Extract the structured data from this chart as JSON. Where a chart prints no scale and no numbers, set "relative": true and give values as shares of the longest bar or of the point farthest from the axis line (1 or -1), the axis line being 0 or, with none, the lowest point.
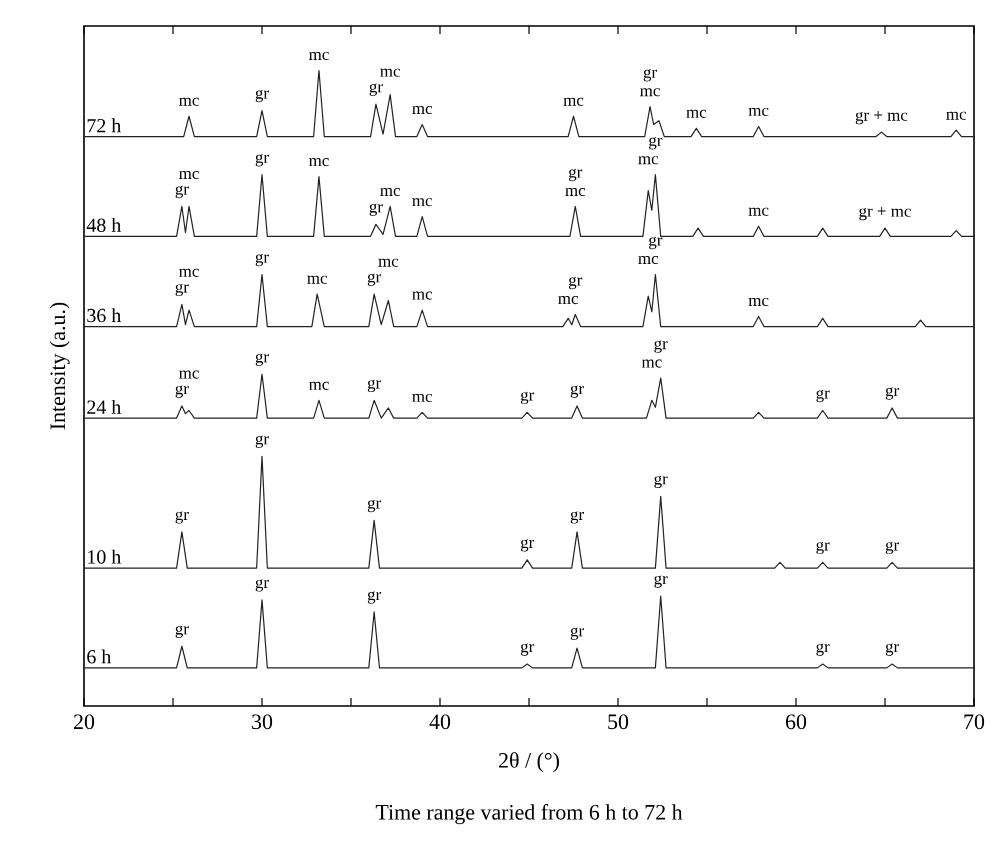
{
  "chart_data": {
    "type": "line",
    "relative": true,
    "xlabel": "2θ / (°)",
    "ylabel": "Intensity (a.u.)",
    "tick_labels": "x",
    "xlim": [
      20,
      70
    ],
    "xticks": [
      20,
      {
        "value": 25,
        "label": null
      },
      30,
      {
        "value": 35,
        "label": null
      },
      40,
      {
        "value": 45,
        "label": null
      },
      50,
      {
        "value": 55,
        "label": null
      },
      60,
      {
        "value": 65,
        "label": null
      },
      70
    ],
    "series": [
      {
        "name": "6 h",
        "color": "#222222",
        "x": [
          20,
          25.2,
          25.5,
          25.8,
          29.7,
          30.0,
          30.3,
          36.0,
          36.3,
          36.6,
          44.6,
          44.9,
          45.2,
          47.4,
          47.7,
          48.0,
          52.1,
          52.4,
          52.7,
          61.2,
          61.5,
          61.8,
          65.1,
          65.4,
          65.7,
          70
        ],
        "values": [
          0.06,
          0.06,
          0.094,
          0.06,
          0.06,
          0.167,
          0.06,
          0.06,
          0.148,
          0.06,
          0.06,
          0.066,
          0.06,
          0.06,
          0.091,
          0.06,
          0.06,
          0.173,
          0.06,
          0.06,
          0.066,
          0.06,
          0.06,
          0.066,
          0.06,
          0.06
        ]
      },
      {
        "name": "10 h",
        "color": "#222222",
        "x": [
          20,
          25.2,
          25.5,
          25.8,
          29.7,
          30.0,
          30.3,
          36.0,
          36.3,
          36.6,
          44.6,
          44.9,
          45.2,
          47.4,
          47.7,
          48.0,
          52.1,
          52.4,
          52.7,
          58.8,
          59.1,
          59.4,
          61.2,
          61.5,
          61.8,
          65.1,
          65.4,
          65.7,
          70
        ],
        "values": [
          0.217,
          0.217,
          0.274,
          0.217,
          0.217,
          0.393,
          0.217,
          0.217,
          0.292,
          0.217,
          0.217,
          0.23,
          0.217,
          0.217,
          0.274,
          0.217,
          0.217,
          0.33,
          0.217,
          0.217,
          0.226,
          0.217,
          0.217,
          0.226,
          0.217,
          0.217,
          0.226,
          0.217,
          0.217
        ]
      },
      {
        "name": "24 h",
        "color": "#222222",
        "x": [
          20,
          25.2,
          25.5,
          25.7,
          25.9,
          26.2,
          29.7,
          30.0,
          30.3,
          32.9,
          33.2,
          33.5,
          36.0,
          36.3,
          36.7,
          37.1,
          37.4,
          38.7,
          39.0,
          39.3,
          44.6,
          44.9,
          45.2,
          47.4,
          47.7,
          48.0,
          51.6,
          51.9,
          52.1,
          52.4,
          52.7,
          57.6,
          57.9,
          58.2,
          61.2,
          61.5,
          61.8,
          65.1,
          65.4,
          65.7,
          70
        ],
        "values": [
          0.453,
          0.453,
          0.472,
          0.46,
          0.465,
          0.453,
          0.453,
          0.522,
          0.453,
          0.453,
          0.481,
          0.453,
          0.453,
          0.481,
          0.453,
          0.469,
          0.453,
          0.453,
          0.462,
          0.453,
          0.453,
          0.462,
          0.453,
          0.453,
          0.472,
          0.453,
          0.453,
          0.481,
          0.47,
          0.516,
          0.453,
          0.453,
          0.462,
          0.453,
          0.453,
          0.465,
          0.453,
          0.453,
          0.469,
          0.453,
          0.453
        ]
      },
      {
        "name": "36 h",
        "color": "#222222",
        "x": [
          20,
          25.2,
          25.5,
          25.7,
          25.9,
          26.2,
          29.7,
          30.0,
          30.3,
          32.8,
          33.1,
          33.5,
          36.0,
          36.3,
          36.7,
          37.1,
          37.4,
          38.7,
          39.0,
          39.3,
          46.9,
          47.2,
          47.4,
          47.6,
          47.9,
          51.4,
          51.7,
          51.9,
          52.1,
          52.4,
          57.6,
          57.9,
          58.2,
          61.2,
          61.5,
          61.8,
          66.7,
          67.0,
          67.3,
          70
        ],
        "values": [
          0.597,
          0.597,
          0.632,
          0.6,
          0.623,
          0.597,
          0.597,
          0.679,
          0.597,
          0.597,
          0.648,
          0.597,
          0.597,
          0.648,
          0.6,
          0.638,
          0.597,
          0.597,
          0.623,
          0.597,
          0.597,
          0.61,
          0.6,
          0.616,
          0.597,
          0.597,
          0.645,
          0.62,
          0.679,
          0.597,
          0.597,
          0.613,
          0.597,
          0.597,
          0.61,
          0.597,
          0.597,
          0.607,
          0.597,
          0.597
        ]
      },
      {
        "name": "48 h",
        "color": "#222222",
        "x": [
          20,
          25.2,
          25.5,
          25.7,
          25.9,
          26.2,
          29.7,
          30.0,
          30.3,
          32.9,
          33.2,
          33.5,
          36.1,
          36.4,
          36.8,
          37.2,
          37.5,
          38.7,
          39.0,
          39.3,
          47.3,
          47.6,
          47.9,
          51.4,
          51.7,
          51.9,
          52.1,
          52.4,
          54.2,
          54.5,
          54.8,
          57.6,
          57.9,
          58.2,
          61.2,
          61.5,
          61.8,
          64.7,
          65.0,
          65.3,
          68.7,
          69.0,
          69.3,
          70
        ],
        "values": [
          0.739,
          0.739,
          0.786,
          0.745,
          0.786,
          0.739,
          0.739,
          0.836,
          0.739,
          0.739,
          0.833,
          0.739,
          0.739,
          0.758,
          0.742,
          0.786,
          0.739,
          0.739,
          0.77,
          0.739,
          0.739,
          0.786,
          0.739,
          0.739,
          0.811,
          0.78,
          0.836,
          0.739,
          0.739,
          0.752,
          0.739,
          0.739,
          0.755,
          0.739,
          0.739,
          0.752,
          0.739,
          0.739,
          0.752,
          0.739,
          0.739,
          0.748,
          0.739,
          0.739
        ]
      },
      {
        "name": "72 h",
        "color": "#222222",
        "x": [
          20,
          25.6,
          25.9,
          26.2,
          29.7,
          30.0,
          30.3,
          32.9,
          33.2,
          33.5,
          36.1,
          36.4,
          36.8,
          37.2,
          37.5,
          38.7,
          39.0,
          39.3,
          47.2,
          47.5,
          47.8,
          51.5,
          51.8,
          52.0,
          52.3,
          52.6,
          54.1,
          54.4,
          54.7,
          57.6,
          57.9,
          58.2,
          64.5,
          64.8,
          65.1,
          68.7,
          69.0,
          69.3,
          70
        ],
        "values": [
          0.896,
          0.896,
          0.928,
          0.896,
          0.896,
          0.937,
          0.896,
          0.896,
          1.0,
          0.896,
          0.896,
          0.947,
          0.9,
          0.962,
          0.896,
          0.896,
          0.915,
          0.896,
          0.896,
          0.928,
          0.896,
          0.896,
          0.943,
          0.915,
          0.921,
          0.896,
          0.896,
          0.909,
          0.896,
          0.896,
          0.912,
          0.896,
          0.896,
          0.903,
          0.896,
          0.896,
          0.906,
          0.896,
          0.896
        ]
      }
    ],
    "annotations": [
      {
        "text": "gr",
        "x": 25.5,
        "y": 0.094
      },
      {
        "text": "gr",
        "x": 30.0,
        "y": 0.167
      },
      {
        "text": "gr",
        "x": 36.3,
        "y": 0.148
      },
      {
        "text": "gr",
        "x": 44.9,
        "y": 0.066
      },
      {
        "text": "gr",
        "x": 47.7,
        "y": 0.091
      },
      {
        "text": "gr",
        "x": 52.4,
        "y": 0.173
      },
      {
        "text": "gr",
        "x": 61.5,
        "y": 0.066
      },
      {
        "text": "gr",
        "x": 65.4,
        "y": 0.066
      },
      {
        "text": "gr",
        "x": 25.5,
        "y": 0.274
      },
      {
        "text": "gr",
        "x": 30.0,
        "y": 0.393
      },
      {
        "text": "gr",
        "x": 36.3,
        "y": 0.292
      },
      {
        "text": "gr",
        "x": 44.9,
        "y": 0.23
      },
      {
        "text": "gr",
        "x": 47.7,
        "y": 0.274
      },
      {
        "text": "gr",
        "x": 52.4,
        "y": 0.33
      },
      {
        "text": "gr",
        "x": 61.5,
        "y": 0.226
      },
      {
        "text": "gr",
        "x": 65.4,
        "y": 0.226
      },
      {
        "text": "gr",
        "x": 25.5,
        "y": 0.472
      },
      {
        "text": "mc",
        "x": 25.9,
        "y": 0.465
      },
      {
        "text": "gr",
        "x": 30.0,
        "y": 0.522
      },
      {
        "text": "mc",
        "x": 33.2,
        "y": 0.481
      },
      {
        "text": "gr",
        "x": 36.3,
        "y": 0.481
      },
      {
        "text": "mc",
        "x": 39.0,
        "y": 0.462
      },
      {
        "text": "gr",
        "x": 44.9,
        "y": 0.462
      },
      {
        "text": "gr",
        "x": 47.7,
        "y": 0.472
      },
      {
        "text": "mc",
        "x": 51.9,
        "y": 0.481
      },
      {
        "text": "gr",
        "x": 52.4,
        "y": 0.516
      },
      {
        "text": "gr",
        "x": 61.5,
        "y": 0.465
      },
      {
        "text": "gr",
        "x": 65.4,
        "y": 0.469
      },
      {
        "text": "gr",
        "x": 25.5,
        "y": 0.632
      },
      {
        "text": "mc",
        "x": 25.9,
        "y": 0.623
      },
      {
        "text": "gr",
        "x": 30.0,
        "y": 0.679
      },
      {
        "text": "mc",
        "x": 33.1,
        "y": 0.648
      },
      {
        "text": "gr",
        "x": 36.3,
        "y": 0.648
      },
      {
        "text": "mc",
        "x": 37.1,
        "y": 0.638
      },
      {
        "text": "mc",
        "x": 39.0,
        "y": 0.623
      },
      {
        "text": "mc",
        "x": 47.2,
        "y": 0.61
      },
      {
        "text": "gr",
        "x": 47.6,
        "y": 0.616
      },
      {
        "text": "mc",
        "x": 51.7,
        "y": 0.645
      },
      {
        "text": "gr",
        "x": 52.1,
        "y": 0.679
      },
      {
        "text": "mc",
        "x": 57.9,
        "y": 0.613
      },
      {
        "text": "gr",
        "x": 25.5,
        "y": 0.786
      },
      {
        "text": "mc",
        "x": 25.9,
        "y": 0.786
      },
      {
        "text": "gr",
        "x": 30.0,
        "y": 0.836
      },
      {
        "text": "mc",
        "x": 33.2,
        "y": 0.833
      },
      {
        "text": "gr",
        "x": 36.4,
        "y": 0.758
      },
      {
        "text": "mc",
        "x": 37.2,
        "y": 0.786
      },
      {
        "text": "mc",
        "x": 39.0,
        "y": 0.77
      },
      {
        "text": "mc",
        "x": 47.6,
        "y": 0.786
      },
      {
        "text": "gr",
        "x": 47.6,
        "y": 0.786
      },
      {
        "text": "mc",
        "x": 51.7,
        "y": 0.811
      },
      {
        "text": "gr",
        "x": 52.1,
        "y": 0.836
      },
      {
        "text": "mc",
        "x": 57.9,
        "y": 0.755
      },
      {
        "text": "gr + mc",
        "x": 65.0,
        "y": 0.752
      },
      {
        "text": "mc",
        "x": 25.9,
        "y": 0.928
      },
      {
        "text": "gr",
        "x": 30.0,
        "y": 0.937
      },
      {
        "text": "mc",
        "x": 33.2,
        "y": 1.0
      },
      {
        "text": "gr",
        "x": 36.4,
        "y": 0.947
      },
      {
        "text": "mc",
        "x": 37.2,
        "y": 0.962
      },
      {
        "text": "mc",
        "x": 39.0,
        "y": 0.915
      },
      {
        "text": "mc",
        "x": 47.5,
        "y": 0.928
      },
      {
        "text": "mc",
        "x": 51.8,
        "y": 0.943
      },
      {
        "text": "gr",
        "x": 51.8,
        "y": 0.943
      },
      {
        "text": "mc",
        "x": 54.4,
        "y": 0.909
      },
      {
        "text": "mc",
        "x": 57.9,
        "y": 0.912
      },
      {
        "text": "gr + mc",
        "x": 64.8,
        "y": 0.903
      },
      {
        "text": "mc",
        "x": 69.0,
        "y": 0.906
      },
      "Time range varied from 6 h to 72 h"
    ]
  }
}
